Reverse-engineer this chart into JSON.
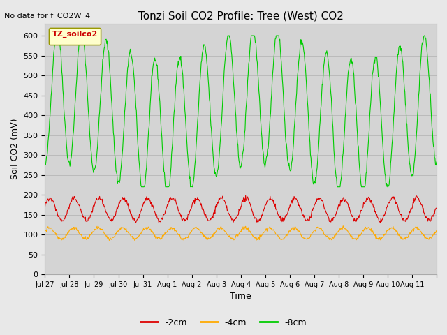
{
  "title": "Tonzi Soil CO2 Profile: Tree (West) CO2",
  "no_data_text": "No data for f_CO2W_4",
  "ylabel": "Soil CO2 (mV)",
  "xlabel": "Time",
  "legend_box_label": "TZ_soilco2",
  "ylim": [
    0,
    630
  ],
  "yticks": [
    0,
    50,
    100,
    150,
    200,
    250,
    300,
    350,
    400,
    450,
    500,
    550,
    600
  ],
  "series": {
    "neg2cm": {
      "label": "-2cm",
      "color": "#dd0000"
    },
    "neg4cm": {
      "label": "-4cm",
      "color": "#ffaa00"
    },
    "neg8cm": {
      "label": "-8cm",
      "color": "#00cc00"
    }
  },
  "bg_color": "#e8e8e8",
  "plot_bg_color": "#d4d4d4",
  "x_tick_labels": [
    "Jul 27",
    "Jul 28",
    "Jul 29",
    "Jul 30",
    "Jul 31",
    "Aug 1",
    "Aug 2",
    "Aug 3",
    "Aug 4",
    "Aug 5",
    "Aug 6",
    "Aug 7",
    "Aug 8",
    "Aug 9",
    "Aug 10",
    "Aug 11"
  ],
  "grid_color": "#bbbbbb",
  "n_days": 16
}
